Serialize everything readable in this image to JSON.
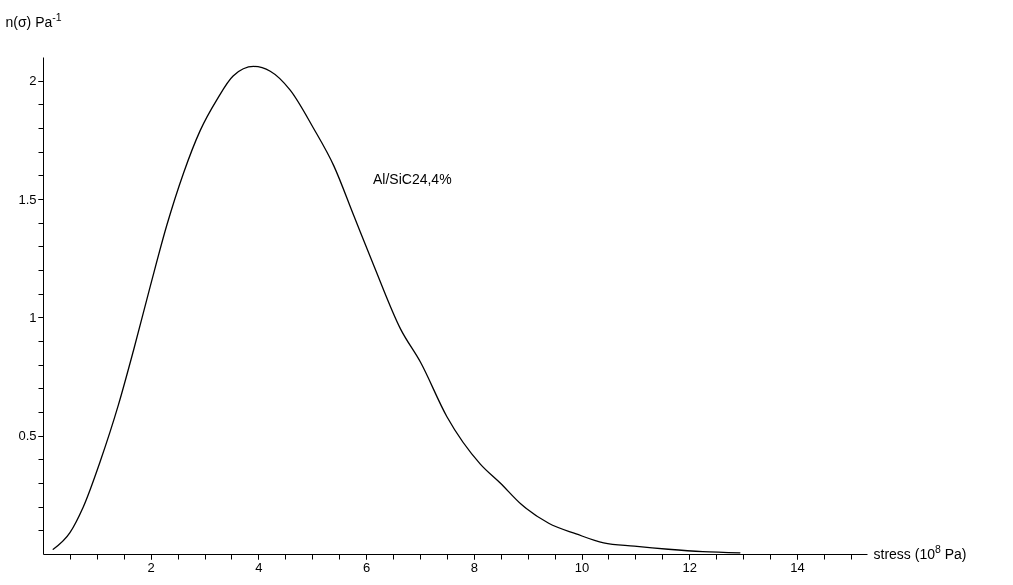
{
  "chart_data": {
    "type": "line",
    "xlabel": "stress (10$^{8}$ Pa)",
    "ylabel": "n(σ) Pa$^{-1}$",
    "grid": false,
    "line_style": "solid",
    "annotations": [
      "Al/SiC24,4%"
    ],
    "xlim": [
      0,
      15.3
    ],
    "ylim": [
      0,
      2.1
    ],
    "xticks": [
      {
        "value": 0.5,
        "label": null
      },
      {
        "value": 1,
        "label": null
      },
      {
        "value": 1.5,
        "label": null
      },
      2,
      {
        "value": 2.5,
        "label": null
      },
      {
        "value": 3,
        "label": null
      },
      {
        "value": 3.5,
        "label": null
      },
      4,
      {
        "value": 4.5,
        "label": null
      },
      {
        "value": 5,
        "label": null
      },
      {
        "value": 5.5,
        "label": null
      },
      6,
      {
        "value": 6.5,
        "label": null
      },
      {
        "value": 7,
        "label": null
      },
      {
        "value": 7.5,
        "label": null
      },
      8,
      {
        "value": 8.5,
        "label": null
      },
      {
        "value": 9,
        "label": null
      },
      {
        "value": 9.5,
        "label": null
      },
      10,
      {
        "value": 10.5,
        "label": null
      },
      {
        "value": 11,
        "label": null
      },
      {
        "value": 11.5,
        "label": null
      },
      12,
      {
        "value": 12.5,
        "label": null
      },
      {
        "value": 13,
        "label": null
      },
      {
        "value": 13.5,
        "label": null
      },
      14,
      {
        "value": 14.5,
        "label": null
      },
      {
        "value": 15,
        "label": null
      }
    ],
    "yticks": [
      {
        "value": 0.1,
        "label": null
      },
      {
        "value": 0.2,
        "label": null
      },
      {
        "value": 0.3,
        "label": null
      },
      {
        "value": 0.4,
        "label": null
      },
      0.5,
      {
        "value": 0.6,
        "label": null
      },
      {
        "value": 0.7,
        "label": null
      },
      {
        "value": 0.8,
        "label": null
      },
      {
        "value": 0.9,
        "label": null
      },
      1,
      {
        "value": 1.1,
        "label": null
      },
      {
        "value": 1.2,
        "label": null
      },
      {
        "value": 1.3,
        "label": null
      },
      {
        "value": 1.4,
        "label": null
      },
      1.5,
      {
        "value": 1.6,
        "label": null
      },
      {
        "value": 1.7,
        "label": null
      },
      {
        "value": 1.8,
        "label": null
      },
      {
        "value": 1.9,
        "label": null
      },
      2
    ],
    "series": [
      {
        "color": "#000000",
        "x": [
          0.19,
          0.5,
          0.75,
          1.06,
          1.4,
          1.68,
          1.99,
          2.3,
          2.61,
          2.92,
          3.23,
          3.53,
          3.91,
          4.22,
          4.59,
          5.02,
          5.4,
          5.77,
          6.14,
          6.64,
          7.01,
          7.5,
          8.12,
          8.49,
          8.88,
          9.39,
          9.9,
          10.41,
          10.98,
          11.61,
          12.25,
          12.94
        ],
        "values": [
          0.02,
          0.09,
          0.2,
          0.39,
          0.63,
          0.86,
          1.13,
          1.39,
          1.61,
          1.79,
          1.92,
          2.02,
          2.06,
          2.04,
          1.96,
          1.8,
          1.64,
          1.43,
          1.22,
          0.95,
          0.81,
          0.58,
          0.38,
          0.3,
          0.21,
          0.13,
          0.085,
          0.047,
          0.033,
          0.02,
          0.01,
          0.005
        ]
      }
    ]
  }
}
